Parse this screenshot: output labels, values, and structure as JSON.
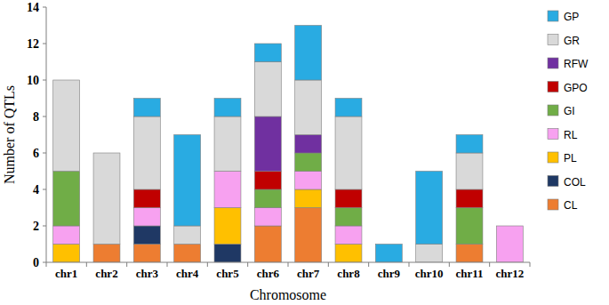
{
  "chart_data": {
    "type": "bar",
    "stacked": true,
    "grid": false,
    "legend": "right",
    "x_label": "Chromosome",
    "y_label": "Number of QTLs",
    "categories": [
      "chr1",
      "chr2",
      "chr3",
      "chr4",
      "chr5",
      "chr6",
      "chr7",
      "chr8",
      "chr9",
      "chr10",
      "chr11",
      "chr12"
    ],
    "ylim": [
      0,
      14
    ],
    "yticks": [
      0,
      2,
      4,
      6,
      8,
      10,
      12,
      14
    ],
    "series": [
      {
        "name": "CL",
        "color": "#ed7d31",
        "values": [
          0,
          1,
          1,
          1,
          0,
          2,
          3,
          0,
          0,
          0,
          1,
          0
        ]
      },
      {
        "name": "COL",
        "color": "#1f3864",
        "values": [
          0,
          0,
          1,
          0,
          1,
          0,
          0,
          0,
          0,
          0,
          0,
          0
        ]
      },
      {
        "name": "PL",
        "color": "#ffc000",
        "values": [
          1,
          0,
          0,
          0,
          2,
          0,
          1,
          1,
          0,
          0,
          0,
          0
        ]
      },
      {
        "name": "RL",
        "color": "#f7a1f0",
        "values": [
          1,
          0,
          1,
          0,
          2,
          1,
          1,
          1,
          0,
          0,
          0,
          2
        ]
      },
      {
        "name": "GI",
        "color": "#70ad47",
        "values": [
          3,
          0,
          0,
          0,
          0,
          1,
          1,
          1,
          0,
          0,
          2,
          0
        ]
      },
      {
        "name": "GPO",
        "color": "#c00000",
        "values": [
          0,
          0,
          1,
          0,
          0,
          1,
          0,
          1,
          0,
          0,
          1,
          0
        ]
      },
      {
        "name": "RFW",
        "color": "#7030a0",
        "values": [
          0,
          0,
          0,
          0,
          0,
          3,
          1,
          0,
          0,
          0,
          0,
          0
        ]
      },
      {
        "name": "GR",
        "color": "#d9d9d9",
        "values": [
          5,
          5,
          4,
          1,
          3,
          3,
          3,
          4,
          0,
          1,
          2,
          0
        ]
      },
      {
        "name": "GP",
        "color": "#29abe2",
        "values": [
          0,
          0,
          1,
          5,
          1,
          1,
          3,
          1,
          1,
          4,
          1,
          0
        ]
      }
    ]
  }
}
